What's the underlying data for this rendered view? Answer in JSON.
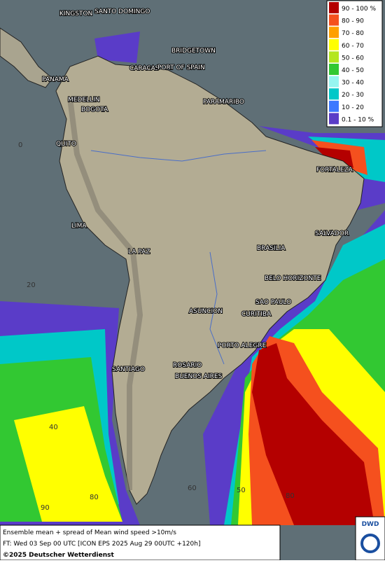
{
  "map": {
    "cities": [
      "KINGSTON",
      "SANTO DOMINGO",
      "BRIDGETOWN",
      "CARACAS",
      "PORT OF SPAIN",
      "PANAMA",
      "PARAMARIBO",
      "MEDELLIN",
      "BOGOTA",
      "QUITO",
      "FORTALEZA",
      "LIMA",
      "SALVADOR",
      "BRASILIA",
      "LA PAZ",
      "BELO HORIZONTE",
      "ASUNCION",
      "SAO PAULO",
      "CURITIBA",
      "PORTO ALEGRE",
      "SANTIAGO",
      "ROSARIO",
      "BUENOS AIRES"
    ],
    "grid_labels": [
      "0",
      "20",
      "40",
      "60",
      "50",
      "80",
      "90",
      "80"
    ],
    "legend": [
      {
        "label": "90 - 100 %",
        "color": "#b40000"
      },
      {
        "label": "80 - 90",
        "color": "#f5501e"
      },
      {
        "label": "70 - 80",
        "color": "#ffa000"
      },
      {
        "label": "60 - 70",
        "color": "#ffff00"
      },
      {
        "label": "50 - 60",
        "color": "#b4e61e"
      },
      {
        "label": "40 - 50",
        "color": "#32c832"
      },
      {
        "label": "30 - 40",
        "color": "#96f5f0"
      },
      {
        "label": "20 - 30",
        "color": "#00c8c8"
      },
      {
        "label": "10 - 20",
        "color": "#3c78ff"
      },
      {
        "label": "0.1 - 10 %",
        "color": "#5a3cc8"
      }
    ],
    "footer": [
      "Ensemble mean + spread of Mean wind speed >10m/s",
      "FT: Wed 03 Sep 00 UTC [ICON EPS 2025 Aug 29 00UTC +120h]",
      "©2025 Deutscher Wetterdienst"
    ],
    "logo": "DWD"
  }
}
